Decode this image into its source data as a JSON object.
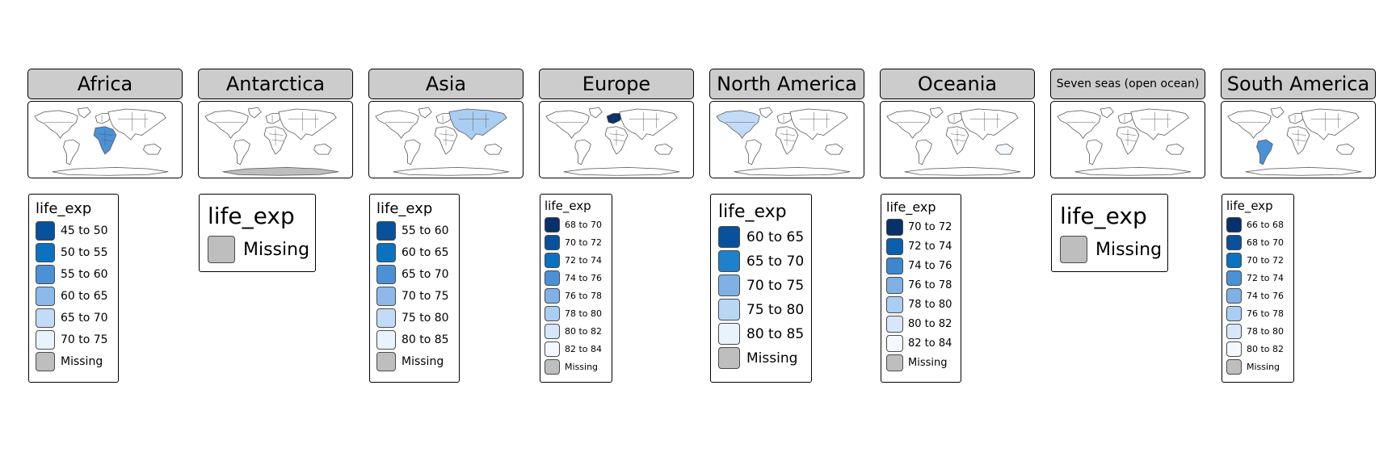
{
  "colors": {
    "strip_bg": "#cccccc",
    "missing": "#bebebe",
    "land": "#ffffff",
    "coast": "#555555"
  },
  "panels": [
    {
      "title": "Africa",
      "legend": {
        "title": "life_exp",
        "items": [
          {
            "label": "45 to 50",
            "color": "#08519c"
          },
          {
            "label": "50 to 55",
            "color": "#0b72c0"
          },
          {
            "label": "55 to 60",
            "color": "#4b91d6"
          },
          {
            "label": "60 to 65",
            "color": "#8db9ea"
          },
          {
            "label": "65 to 70",
            "color": "#c2dbf6"
          },
          {
            "label": "70 to 75",
            "color": "#e9f3fe"
          },
          {
            "label": "Missing",
            "color": "#bebebe"
          }
        ]
      }
    },
    {
      "title": "Antarctica",
      "legend": {
        "title": "life_exp",
        "items": [
          {
            "label": "Missing",
            "color": "#bebebe"
          }
        ]
      }
    },
    {
      "title": "Asia",
      "legend": {
        "title": "life_exp",
        "items": [
          {
            "label": "55 to 60",
            "color": "#08519c"
          },
          {
            "label": "60 to 65",
            "color": "#0b72c0"
          },
          {
            "label": "65 to 70",
            "color": "#4b91d6"
          },
          {
            "label": "70 to 75",
            "color": "#8db9ea"
          },
          {
            "label": "75 to 80",
            "color": "#c2dbf6"
          },
          {
            "label": "80 to 85",
            "color": "#e9f3fe"
          },
          {
            "label": "Missing",
            "color": "#bebebe"
          }
        ]
      }
    },
    {
      "title": "Europe",
      "legend": {
        "title": "life_exp",
        "items": [
          {
            "label": "68 to 70",
            "color": "#08306b"
          },
          {
            "label": "70 to 72",
            "color": "#08519c"
          },
          {
            "label": "72 to 74",
            "color": "#0b72c0"
          },
          {
            "label": "74 to 76",
            "color": "#4b91d6"
          },
          {
            "label": "76 to 78",
            "color": "#7fb0e6"
          },
          {
            "label": "78 to 80",
            "color": "#aacdf2"
          },
          {
            "label": "80 to 82",
            "color": "#d6e7fa"
          },
          {
            "label": "82 to 84",
            "color": "#f4f9ff"
          },
          {
            "label": "Missing",
            "color": "#bebebe"
          }
        ]
      }
    },
    {
      "title": "North America",
      "legend": {
        "title": "life_exp",
        "items": [
          {
            "label": "60 to 65",
            "color": "#08519c"
          },
          {
            "label": "65 to 70",
            "color": "#1f80cc"
          },
          {
            "label": "70 to 75",
            "color": "#7fb0e6"
          },
          {
            "label": "75 to 80",
            "color": "#b9d6f5"
          },
          {
            "label": "80 to 85",
            "color": "#e9f3fe"
          },
          {
            "label": "Missing",
            "color": "#bebebe"
          }
        ]
      }
    },
    {
      "title": "Oceania",
      "legend": {
        "title": "life_exp",
        "items": [
          {
            "label": "70 to 72",
            "color": "#08306b"
          },
          {
            "label": "72 to 74",
            "color": "#0b5fab"
          },
          {
            "label": "74 to 76",
            "color": "#3d87cf"
          },
          {
            "label": "76 to 78",
            "color": "#7fb0e6"
          },
          {
            "label": "78 to 80",
            "color": "#aacdf2"
          },
          {
            "label": "80 to 82",
            "color": "#d6e7fa"
          },
          {
            "label": "82 to 84",
            "color": "#f4f9ff"
          },
          {
            "label": "Missing",
            "color": "#bebebe"
          }
        ]
      }
    },
    {
      "title": "Seven seas (open ocean)",
      "legend": {
        "title": "life_exp",
        "items": [
          {
            "label": "Missing",
            "color": "#bebebe"
          }
        ]
      }
    },
    {
      "title": "South America",
      "legend": {
        "title": "life_exp",
        "items": [
          {
            "label": "66 to 68",
            "color": "#08306b"
          },
          {
            "label": "68 to 70",
            "color": "#08519c"
          },
          {
            "label": "70 to 72",
            "color": "#0b72c0"
          },
          {
            "label": "72 to 74",
            "color": "#4b91d6"
          },
          {
            "label": "74 to 76",
            "color": "#7fb0e6"
          },
          {
            "label": "76 to 78",
            "color": "#aacdf2"
          },
          {
            "label": "78 to 80",
            "color": "#d6e7fa"
          },
          {
            "label": "80 to 82",
            "color": "#f4f9ff"
          },
          {
            "label": "Missing",
            "color": "#bebebe"
          }
        ]
      }
    }
  ]
}
